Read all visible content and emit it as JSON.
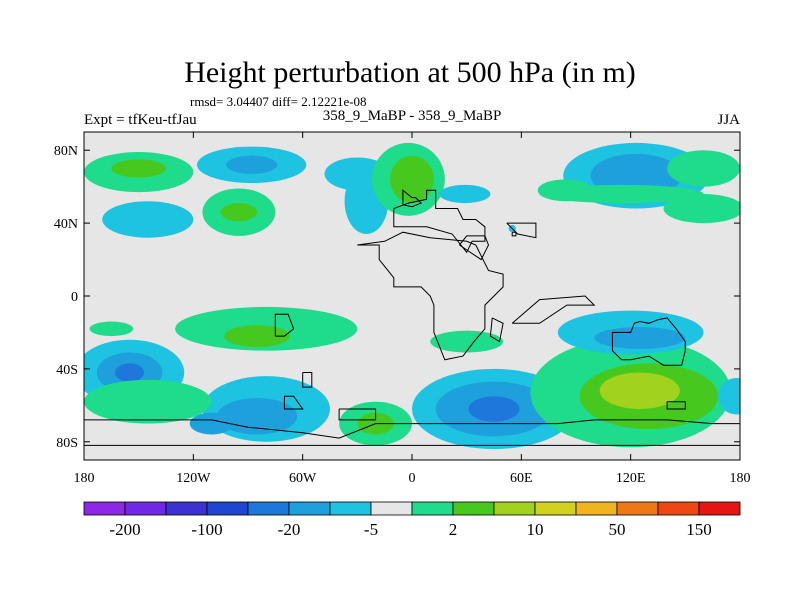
{
  "chart_data": {
    "type": "heatmap",
    "title": "Height perturbation at 500 hPa (in m)",
    "stats_label": "rmsd= 3.04407 diff= 2.12221e-08",
    "left_label": "Expt = tfKeu-tfJau",
    "center_label": "358_9_MaBP - 358_9_MaBP",
    "right_label": "JJA",
    "xlim": [
      -180,
      180
    ],
    "ylim": [
      -90,
      90
    ],
    "x_ticks": [
      {
        "value": -180,
        "label": "180"
      },
      {
        "value": -120,
        "label": "120W"
      },
      {
        "value": -60,
        "label": "60W"
      },
      {
        "value": 0,
        "label": "0"
      },
      {
        "value": 60,
        "label": "60E"
      },
      {
        "value": 120,
        "label": "120E"
      },
      {
        "value": 180,
        "label": "180"
      }
    ],
    "y_ticks": [
      {
        "value": 80,
        "label": "80N"
      },
      {
        "value": 40,
        "label": "40N"
      },
      {
        "value": 0,
        "label": "0"
      },
      {
        "value": -40,
        "label": "40S"
      },
      {
        "value": -80,
        "label": "80S"
      }
    ],
    "colorbar": {
      "colors": [
        "#8c28e6",
        "#6e28e6",
        "#3c32d2",
        "#1e46d2",
        "#1e78dc",
        "#1ea0dc",
        "#1ec3e1",
        "#e6e6e6",
        "#1edc8c",
        "#46c81e",
        "#a0d21e",
        "#d2d21e",
        "#f0b41e",
        "#f07814",
        "#f04614",
        "#e61414"
      ],
      "labels": [
        {
          "boundary": 1,
          "text": "-200"
        },
        {
          "boundary": 3,
          "text": "-100"
        },
        {
          "boundary": 5,
          "text": "-20"
        },
        {
          "boundary": 7,
          "text": "-5"
        },
        {
          "boundary": 9,
          "text": "2"
        },
        {
          "boundary": 11,
          "text": "10"
        },
        {
          "boundary": 13,
          "text": "50"
        },
        {
          "boundary": 15,
          "text": "150"
        }
      ]
    },
    "background_color": "#e6e6e6",
    "fields": [
      {
        "lon": -150,
        "lat": 68,
        "rlon": 30,
        "rlat": 11,
        "color": "#1edc8c"
      },
      {
        "lon": -150,
        "lat": 70,
        "rlon": 15,
        "rlat": 5,
        "color": "#46c81e"
      },
      {
        "lon": -88,
        "lat": 72,
        "rlon": 30,
        "rlat": 10,
        "color": "#1ec3e1"
      },
      {
        "lon": -88,
        "lat": 72,
        "rlon": 14,
        "rlat": 5,
        "color": "#1ea0dc"
      },
      {
        "lon": -30,
        "lat": 67,
        "rlon": 18,
        "rlat": 9,
        "color": "#1ec3e1"
      },
      {
        "lon": -25,
        "lat": 52,
        "rlon": 12,
        "rlat": 18,
        "color": "#1ec3e1"
      },
      {
        "lon": -2,
        "lat": 64,
        "rlon": 20,
        "rlat": 20,
        "color": "#1edc8c"
      },
      {
        "lon": 0,
        "lat": 64,
        "rlon": 12,
        "rlat": 13,
        "color": "#46c81e"
      },
      {
        "lon": 29,
        "lat": 56,
        "rlon": 14,
        "rlat": 5,
        "color": "#1ec3e1"
      },
      {
        "lon": -145,
        "lat": 42,
        "rlon": 25,
        "rlat": 10,
        "color": "#1ec3e1"
      },
      {
        "lon": -95,
        "lat": 46,
        "rlon": 20,
        "rlat": 13,
        "color": "#1edc8c"
      },
      {
        "lon": -95,
        "lat": 46,
        "rlon": 10,
        "rlat": 5,
        "color": "#46c81e"
      },
      {
        "lon": 123,
        "lat": 66,
        "rlon": 40,
        "rlat": 18,
        "color": "#1ec3e1"
      },
      {
        "lon": 123,
        "lat": 66,
        "rlon": 25,
        "rlat": 12,
        "color": "#1ea0dc"
      },
      {
        "lon": 84,
        "lat": 58,
        "rlon": 15,
        "rlat": 6,
        "color": "#1edc8c"
      },
      {
        "lon": 115,
        "lat": 56,
        "rlon": 45,
        "rlat": 5,
        "color": "#1edc8c"
      },
      {
        "lon": 160,
        "lat": 70,
        "rlon": 20,
        "rlat": 10,
        "color": "#1edc8c"
      },
      {
        "lon": 160,
        "lat": 48,
        "rlon": 22,
        "rlat": 8,
        "color": "#1edc8c"
      },
      {
        "lon": 55,
        "lat": 37,
        "rlon": 2,
        "rlat": 2,
        "color": "#1ec3e1"
      },
      {
        "lon": -165,
        "lat": -18,
        "rlon": 12,
        "rlat": 4,
        "color": "#1edc8c"
      },
      {
        "lon": -80,
        "lat": -18,
        "rlon": 50,
        "rlat": 12,
        "color": "#1edc8c"
      },
      {
        "lon": -85,
        "lat": -22,
        "rlon": 18,
        "rlat": 6,
        "color": "#46c81e"
      },
      {
        "lon": 30,
        "lat": -25,
        "rlon": 20,
        "rlat": 6,
        "color": "#1edc8c"
      },
      {
        "lon": -155,
        "lat": -42,
        "rlon": 30,
        "rlat": 18,
        "color": "#1ec3e1"
      },
      {
        "lon": -155,
        "lat": -42,
        "rlon": 18,
        "rlat": 11,
        "color": "#1ea0dc"
      },
      {
        "lon": -155,
        "lat": -42,
        "rlon": 8,
        "rlat": 5,
        "color": "#1e78dc"
      },
      {
        "lon": -80,
        "lat": -62,
        "rlon": 35,
        "rlat": 18,
        "color": "#1ec3e1"
      },
      {
        "lon": -85,
        "lat": -66,
        "rlon": 22,
        "rlat": 10,
        "color": "#1ea0dc"
      },
      {
        "lon": -110,
        "lat": -70,
        "rlon": 12,
        "rlat": 6,
        "color": "#1ea0dc"
      },
      {
        "lon": -145,
        "lat": -58,
        "rlon": 35,
        "rlat": 12,
        "color": "#1edc8c"
      },
      {
        "lon": -20,
        "lat": -70,
        "rlon": 20,
        "rlat": 12,
        "color": "#1edc8c"
      },
      {
        "lon": -20,
        "lat": -70,
        "rlon": 10,
        "rlat": 6,
        "color": "#46c81e"
      },
      {
        "lon": 45,
        "lat": -62,
        "rlon": 45,
        "rlat": 22,
        "color": "#1ec3e1"
      },
      {
        "lon": 45,
        "lat": -62,
        "rlon": 32,
        "rlat": 15,
        "color": "#1ea0dc"
      },
      {
        "lon": 45,
        "lat": -62,
        "rlon": 14,
        "rlat": 7,
        "color": "#1e78dc"
      },
      {
        "lon": 120,
        "lat": -53,
        "rlon": 55,
        "rlat": 30,
        "color": "#1edc8c"
      },
      {
        "lon": 120,
        "lat": -20,
        "rlon": 40,
        "rlat": 12,
        "color": "#1ec3e1"
      },
      {
        "lon": 125,
        "lat": -23,
        "rlon": 25,
        "rlat": 6,
        "color": "#1ea0dc"
      },
      {
        "lon": 130,
        "lat": -55,
        "rlon": 38,
        "rlat": 18,
        "color": "#46c81e"
      },
      {
        "lon": 125,
        "lat": -52,
        "rlon": 22,
        "rlat": 10,
        "color": "#a0d21e"
      },
      {
        "lon": 178,
        "lat": -55,
        "rlon": 10,
        "rlat": 10,
        "color": "#1ec3e1"
      }
    ],
    "coastlines": [
      [
        [
          0,
          54
        ],
        [
          -5,
          58
        ],
        [
          -5,
          50
        ],
        [
          0,
          49
        ],
        [
          5,
          51
        ],
        [
          2,
          54
        ],
        [
          0,
          54
        ]
      ],
      [
        [
          -10,
          48
        ],
        [
          -2,
          51
        ],
        [
          8,
          53
        ],
        [
          8,
          58
        ],
        [
          13,
          58
        ],
        [
          13,
          48
        ],
        [
          25,
          48
        ],
        [
          28,
          42
        ],
        [
          35,
          42
        ],
        [
          40,
          38
        ],
        [
          40,
          30
        ],
        [
          33,
          30
        ],
        [
          30,
          24
        ],
        [
          22,
          34
        ],
        [
          8,
          38
        ],
        [
          -3,
          38
        ],
        [
          -10,
          38
        ],
        [
          -10,
          48
        ]
      ],
      [
        [
          -30,
          28
        ],
        [
          -18,
          28
        ],
        [
          -18,
          20
        ],
        [
          -10,
          10
        ],
        [
          -10,
          5
        ],
        [
          5,
          5
        ],
        [
          10,
          0
        ],
        [
          12,
          -5
        ],
        [
          12,
          -20
        ],
        [
          18,
          -35
        ],
        [
          28,
          -33
        ],
        [
          34,
          -25
        ],
        [
          40,
          -18
        ],
        [
          40,
          -5
        ],
        [
          50,
          5
        ],
        [
          50,
          12
        ],
        [
          42,
          14
        ],
        [
          35,
          28
        ],
        [
          30,
          30
        ],
        [
          10,
          32
        ],
        [
          -5,
          35
        ],
        [
          -15,
          30
        ],
        [
          -30,
          28
        ]
      ],
      [
        [
          26,
          28
        ],
        [
          38,
          20
        ],
        [
          42,
          28
        ],
        [
          40,
          33
        ],
        [
          30,
          33
        ],
        [
          26,
          28
        ]
      ],
      [
        [
          44,
          -12
        ],
        [
          50,
          -15
        ],
        [
          48,
          -25
        ],
        [
          43,
          -22
        ],
        [
          44,
          -12
        ]
      ],
      [
        [
          52,
          40
        ],
        [
          68,
          40
        ],
        [
          68,
          32
        ],
        [
          58,
          34
        ],
        [
          52,
          40
        ]
      ],
      [
        [
          55,
          35
        ],
        [
          57,
          35
        ],
        [
          57,
          33
        ],
        [
          55,
          33
        ],
        [
          55,
          35
        ]
      ],
      [
        [
          55,
          -15
        ],
        [
          70,
          -15
        ],
        [
          85,
          -5
        ],
        [
          100,
          -5
        ],
        [
          95,
          0
        ],
        [
          70,
          -2
        ],
        [
          55,
          -15
        ]
      ],
      [
        [
          110,
          -20
        ],
        [
          120,
          -20
        ],
        [
          122,
          -15
        ],
        [
          125,
          -14
        ],
        [
          130,
          -15
        ],
        [
          135,
          -13
        ],
        [
          140,
          -12
        ],
        [
          145,
          -18
        ],
        [
          150,
          -25
        ],
        [
          150,
          -30
        ],
        [
          148,
          -38
        ],
        [
          138,
          -38
        ],
        [
          130,
          -33
        ],
        [
          120,
          -35
        ],
        [
          115,
          -35
        ],
        [
          110,
          -30
        ],
        [
          110,
          -20
        ]
      ],
      [
        [
          140,
          -58
        ],
        [
          150,
          -58
        ],
        [
          150,
          -62
        ],
        [
          140,
          -62
        ],
        [
          140,
          -58
        ]
      ],
      [
        [
          -75,
          -22
        ],
        [
          -75,
          -10
        ],
        [
          -68,
          -10
        ],
        [
          -65,
          -18
        ],
        [
          -70,
          -22
        ],
        [
          -75,
          -22
        ]
      ],
      [
        [
          -60,
          -42
        ],
        [
          -55,
          -42
        ],
        [
          -55,
          -50
        ],
        [
          -60,
          -50
        ],
        [
          -60,
          -42
        ]
      ],
      [
        [
          -70,
          -55
        ],
        [
          -65,
          -55
        ],
        [
          -60,
          -62
        ],
        [
          -70,
          -62
        ],
        [
          -70,
          -55
        ]
      ],
      [
        [
          -40,
          -62
        ],
        [
          -20,
          -62
        ],
        [
          -20,
          -68
        ],
        [
          -40,
          -68
        ],
        [
          -40,
          -62
        ]
      ],
      [
        [
          -180,
          -68
        ],
        [
          -110,
          -68
        ],
        [
          -90,
          -72
        ],
        [
          -60,
          -75
        ],
        [
          -40,
          -78
        ],
        [
          -20,
          -70
        ],
        [
          0,
          -70
        ],
        [
          40,
          -70
        ],
        [
          80,
          -70
        ],
        [
          100,
          -68
        ],
        [
          140,
          -68
        ],
        [
          165,
          -70
        ],
        [
          180,
          -70
        ],
        [
          180,
          -82
        ],
        [
          -180,
          -82
        ],
        [
          -180,
          -68
        ]
      ]
    ]
  }
}
